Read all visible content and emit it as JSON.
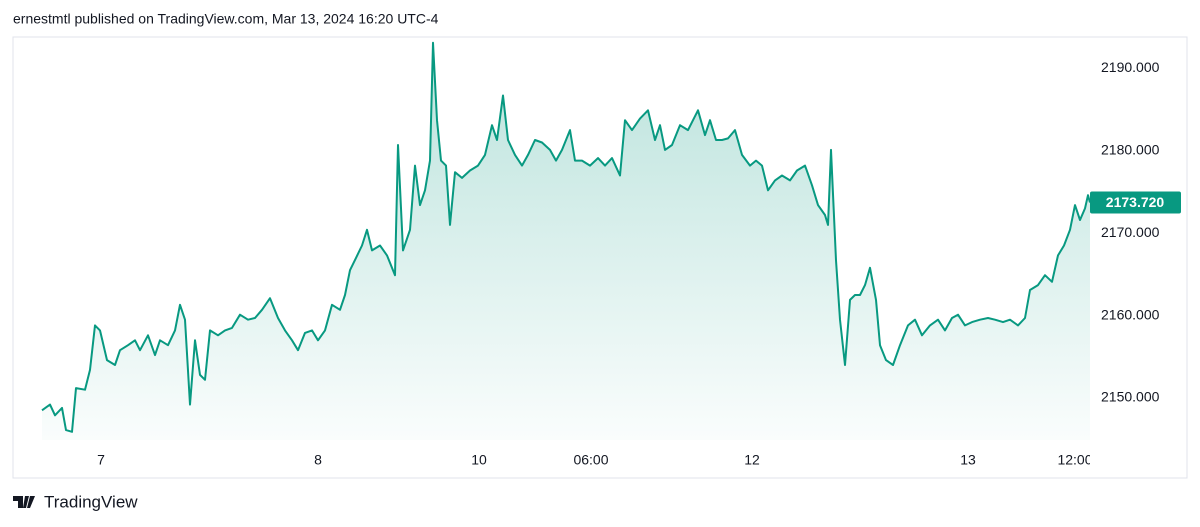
{
  "header": {
    "text": "ernestmtl published on TradingView.com, Mar 13, 2024 16:20 UTC-4"
  },
  "footer": {
    "brand": "TradingView"
  },
  "chart_data": {
    "type": "line",
    "color": "#089981",
    "fill": true,
    "x": [
      0,
      8,
      13,
      20,
      24,
      30,
      34,
      43,
      48,
      53,
      58,
      65,
      73,
      78,
      86,
      93,
      98,
      106,
      113,
      118,
      126,
      133,
      138,
      143,
      148,
      153,
      158,
      163,
      168,
      176,
      183,
      190,
      198,
      206,
      213,
      220,
      228,
      236,
      243,
      250,
      256,
      263,
      270,
      276,
      283,
      290,
      298,
      303,
      308,
      314,
      320,
      325,
      330,
      338,
      345,
      353,
      356,
      361,
      368,
      373,
      378,
      383,
      388,
      391,
      395,
      399,
      404,
      408,
      413,
      420,
      428,
      436,
      443,
      450,
      455,
      461,
      466,
      473,
      480,
      486,
      493,
      500,
      508,
      514,
      520,
      528,
      533,
      540,
      548,
      556,
      563,
      570,
      578,
      583,
      590,
      598,
      606,
      613,
      618,
      623,
      630,
      638,
      646,
      651,
      656,
      663,
      668,
      674,
      680,
      686,
      693,
      700,
      708,
      714,
      720,
      726,
      733,
      740,
      748,
      755,
      763,
      770,
      776,
      783,
      786,
      789,
      794,
      798,
      803,
      808,
      813,
      818,
      823,
      828,
      834,
      838,
      844,
      851,
      858,
      866,
      873,
      880,
      888,
      896,
      903,
      910,
      916,
      923,
      930,
      938,
      946,
      953,
      961,
      968,
      976,
      983,
      988,
      996,
      1003,
      1010,
      1016,
      1022,
      1028,
      1033,
      1038,
      1043,
      1046,
      1048
    ],
    "values": [
      2148.5,
      2149.2,
      2147.9,
      2148.8,
      2146.1,
      2145.9,
      2151.2,
      2151.0,
      2153.4,
      2158.8,
      2158.2,
      2154.6,
      2154.0,
      2155.8,
      2156.4,
      2157.0,
      2155.8,
      2157.6,
      2155.2,
      2157.0,
      2156.4,
      2158.2,
      2161.3,
      2159.5,
      2149.2,
      2157.0,
      2152.8,
      2152.2,
      2158.2,
      2157.6,
      2158.2,
      2158.5,
      2160.1,
      2159.5,
      2159.7,
      2160.7,
      2162.1,
      2159.7,
      2158.2,
      2157.0,
      2155.8,
      2157.9,
      2158.2,
      2157.0,
      2158.2,
      2161.3,
      2160.7,
      2162.5,
      2165.5,
      2167.0,
      2168.5,
      2170.4,
      2167.9,
      2168.5,
      2167.3,
      2164.9,
      2180.7,
      2167.9,
      2170.4,
      2178.2,
      2173.4,
      2175.2,
      2178.8,
      2193.1,
      2183.7,
      2178.8,
      2178.2,
      2171.0,
      2177.4,
      2176.7,
      2177.6,
      2178.2,
      2179.5,
      2183.1,
      2181.3,
      2186.7,
      2181.3,
      2179.5,
      2178.2,
      2179.5,
      2181.3,
      2181.0,
      2180.1,
      2178.8,
      2180.1,
      2182.5,
      2178.8,
      2178.8,
      2178.2,
      2179.1,
      2178.2,
      2179.1,
      2177.0,
      2183.7,
      2182.5,
      2183.9,
      2184.9,
      2181.3,
      2183.1,
      2180.1,
      2180.7,
      2183.1,
      2182.5,
      2183.7,
      2184.9,
      2181.9,
      2183.7,
      2181.3,
      2181.3,
      2181.5,
      2182.5,
      2179.5,
      2178.2,
      2178.8,
      2178.2,
      2175.2,
      2176.4,
      2177.0,
      2176.4,
      2177.6,
      2178.2,
      2175.8,
      2173.4,
      2172.2,
      2171.0,
      2180.1,
      2166.7,
      2159.5,
      2154.0,
      2161.9,
      2162.5,
      2162.5,
      2163.7,
      2165.8,
      2161.9,
      2156.4,
      2154.6,
      2154.0,
      2156.4,
      2158.8,
      2159.5,
      2157.6,
      2158.8,
      2159.5,
      2158.2,
      2159.7,
      2160.1,
      2158.8,
      2159.2,
      2159.5,
      2159.7,
      2159.5,
      2159.2,
      2159.5,
      2158.8,
      2159.7,
      2163.1,
      2163.7,
      2164.9,
      2164.1,
      2167.3,
      2168.5,
      2170.4,
      2173.4,
      2171.6,
      2173.0,
      2174.6,
      2173.72
    ],
    "last_price": {
      "value": 2173.72,
      "label": "2173.720"
    },
    "xlim": [
      -29,
      1048
    ],
    "xticks": [
      {
        "value": 59,
        "label": "7"
      },
      {
        "value": 276,
        "label": "8"
      },
      {
        "value": 437,
        "label": "10"
      },
      {
        "value": 549,
        "label": "06:00"
      },
      {
        "value": 710,
        "label": "12"
      },
      {
        "value": 926,
        "label": "13"
      },
      {
        "value": 1033,
        "label": "12:00"
      }
    ],
    "ylim": [
      2144.9,
      2193.8
    ],
    "yticks": [
      {
        "value": 2150,
        "label": "2150.000"
      },
      {
        "value": 2160,
        "label": "2160.000"
      },
      {
        "value": 2170,
        "label": "2170.000"
      },
      {
        "value": 2180,
        "label": "2180.000"
      },
      {
        "value": 2190,
        "label": "2190.000"
      }
    ],
    "grid": false
  }
}
